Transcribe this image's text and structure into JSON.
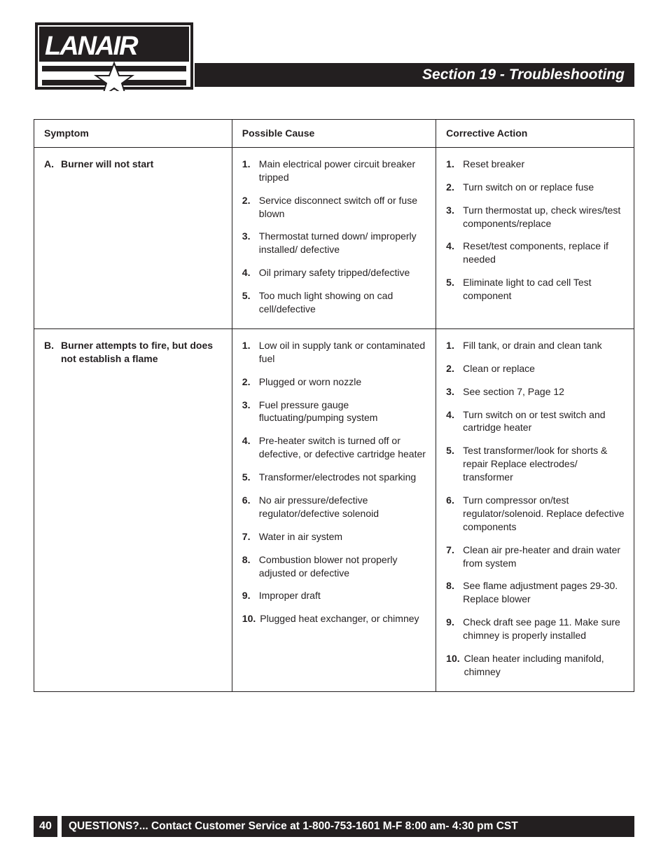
{
  "header": {
    "section_title": "Section 19 - Troubleshooting",
    "logo_text": "LANAIR"
  },
  "table": {
    "columns": [
      "Symptom",
      "Possible Cause",
      "Corrective Action"
    ],
    "rows": [
      {
        "symptom_letter": "A",
        "symptom_text": "Burner will not start",
        "causes": [
          "Main electrical power circuit breaker tripped",
          "Service disconnect switch off or fuse blown",
          "Thermostat turned down/ improperly installed/ defective",
          "Oil primary safety tripped/defective",
          "Too much light showing on cad cell/defective"
        ],
        "actions": [
          "Reset breaker",
          "Turn switch on or replace fuse",
          "Turn thermostat up, check wires/test components/replace",
          "Reset/test components, replace if needed",
          "Eliminate light to cad cell Test component"
        ]
      },
      {
        "symptom_letter": "B",
        "symptom_text": "Burner attempts to fire, but does not establish a flame",
        "causes": [
          "Low oil in supply tank or contaminated fuel",
          "Plugged or worn nozzle",
          "Fuel pressure gauge fluctuating/pumping system",
          "Pre-heater switch is turned off or defective, or defective cartridge heater",
          "Transformer/electrodes not sparking",
          "No air pressure/defective regulator/defective solenoid",
          "Water in air system",
          "Combustion blower not properly adjusted or defective",
          "Improper draft",
          "Plugged heat exchanger, or chimney"
        ],
        "actions": [
          "Fill tank, or drain and clean tank",
          "Clean or replace",
          "See section 7, Page 12",
          "Turn switch on or test switch and cartridge heater",
          "Test transformer/look for shorts & repair Replace electrodes/ transformer",
          "Turn compressor on/test regulator/solenoid. Replace defective components",
          "Clean air pre-heater and drain water from system",
          "See flame adjustment pages 29-30. Replace blower",
          "Check draft see page 11. Make sure chimney is properly installed",
          "Clean heater including manifold, chimney"
        ]
      }
    ]
  },
  "footer": {
    "page_number": "40",
    "text": "QUESTIONS?... Contact Customer Service at 1-800-753-1601 M-F 8:00 am- 4:30 pm CST"
  },
  "styles": {
    "text_color": "#231f20",
    "bar_bg": "#231f20",
    "bar_fg": "#ffffff",
    "border_color": "#231f20",
    "page_bg": "#ffffff",
    "body_font_size": 14,
    "header_font_size": 21
  }
}
